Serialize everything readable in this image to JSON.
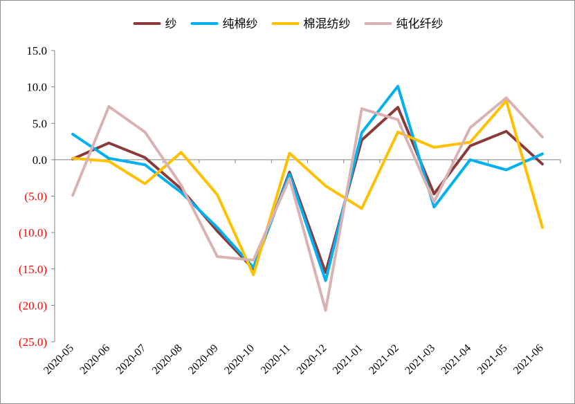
{
  "chart_data": {
    "type": "line",
    "categories": [
      "2020-05",
      "2020-06",
      "2020-07",
      "2020-08",
      "2020-09",
      "2020-10",
      "2020-11",
      "2020-12",
      "2021-01",
      "2021-02",
      "2021-03",
      "2021-04",
      "2021-05",
      "2021-06"
    ],
    "series": [
      {
        "name": "纱",
        "color": "#8B3A3A",
        "values": [
          0.1,
          2.3,
          0.3,
          -4.0,
          -9.8,
          -15.0,
          -1.7,
          -15.5,
          2.7,
          7.2,
          -4.7,
          1.9,
          3.9,
          -0.6
        ]
      },
      {
        "name": "纯棉纱",
        "color": "#00B0F0",
        "values": [
          3.5,
          0.2,
          -0.7,
          -4.5,
          -9.3,
          -14.8,
          -2.0,
          -16.6,
          3.7,
          10.1,
          -6.5,
          0.0,
          -1.4,
          0.8
        ]
      },
      {
        "name": "棉混纺纱",
        "color": "#FFC000",
        "values": [
          0.2,
          -0.2,
          -3.3,
          1.0,
          -4.8,
          -15.8,
          0.9,
          -3.6,
          -6.7,
          3.8,
          1.7,
          2.4,
          8.1,
          -9.3
        ]
      },
      {
        "name": "纯化纤纱",
        "color": "#D9B3B3",
        "values": [
          -4.9,
          7.3,
          3.8,
          -3.5,
          -13.3,
          -13.8,
          -2.6,
          -20.7,
          7.0,
          5.5,
          -5.8,
          4.4,
          8.5,
          3.1
        ]
      }
    ],
    "yticks": [
      "15.0",
      "10.0",
      "5.0",
      "0.0",
      "(5.0)",
      "(10.0)",
      "(15.0)",
      "(20.0)",
      "(25.0)"
    ],
    "ytick_values": [
      15,
      10,
      5,
      0,
      -5,
      -10,
      -15,
      -20,
      -25
    ],
    "negative_label_color": "#FF0000",
    "ylim": [
      -25,
      15
    ],
    "legend_position": "top",
    "grid": false
  }
}
